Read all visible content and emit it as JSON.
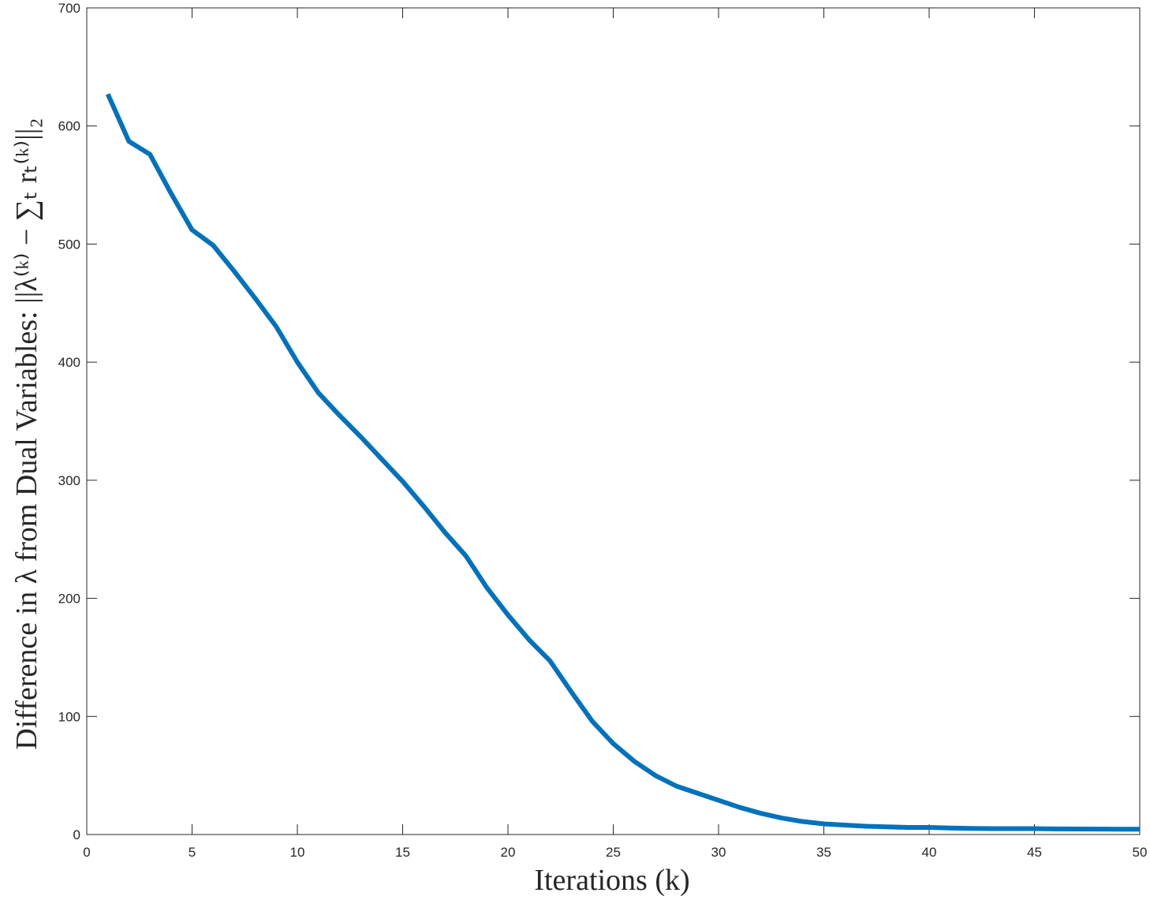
{
  "chart_data": {
    "type": "line",
    "x_label": "Iterations (k)",
    "y_label": "Difference in λ from Dual Variables: ||λ⁽ᵏ⁾ − ∑ₜ rₜ⁽ᵏ⁾||₂",
    "x": [
      1,
      2,
      3,
      4,
      5,
      6,
      7,
      8,
      9,
      10,
      11,
      12,
      13,
      14,
      15,
      16,
      17,
      18,
      19,
      20,
      21,
      22,
      23,
      24,
      25,
      26,
      27,
      28,
      29,
      30,
      31,
      32,
      33,
      34,
      35,
      36,
      37,
      38,
      39,
      40,
      41,
      42,
      43,
      44,
      45,
      46,
      47,
      48,
      49,
      50
    ],
    "series": [
      {
        "color": "#0072bd",
        "values": [
          627,
          587,
          576,
          543,
          512,
          499,
          477,
          454,
          430,
          400,
          374,
          355,
          337,
          318,
          299,
          278,
          256,
          236,
          209,
          186,
          165,
          147,
          121,
          96,
          77,
          62,
          50,
          41,
          35,
          29,
          23,
          18,
          14,
          11,
          9,
          8,
          7,
          6.5,
          6,
          6,
          5.5,
          5.2,
          5,
          5,
          5,
          4.8,
          4.7,
          4.6,
          4.5,
          4.5
        ]
      }
    ],
    "xlim": [
      0,
      50
    ],
    "xticks": [
      0,
      5,
      10,
      15,
      20,
      25,
      30,
      35,
      40,
      45,
      50
    ],
    "ylim": [
      0,
      700
    ],
    "yticks": [
      0,
      100,
      200,
      300,
      400,
      500,
      600,
      700
    ]
  }
}
